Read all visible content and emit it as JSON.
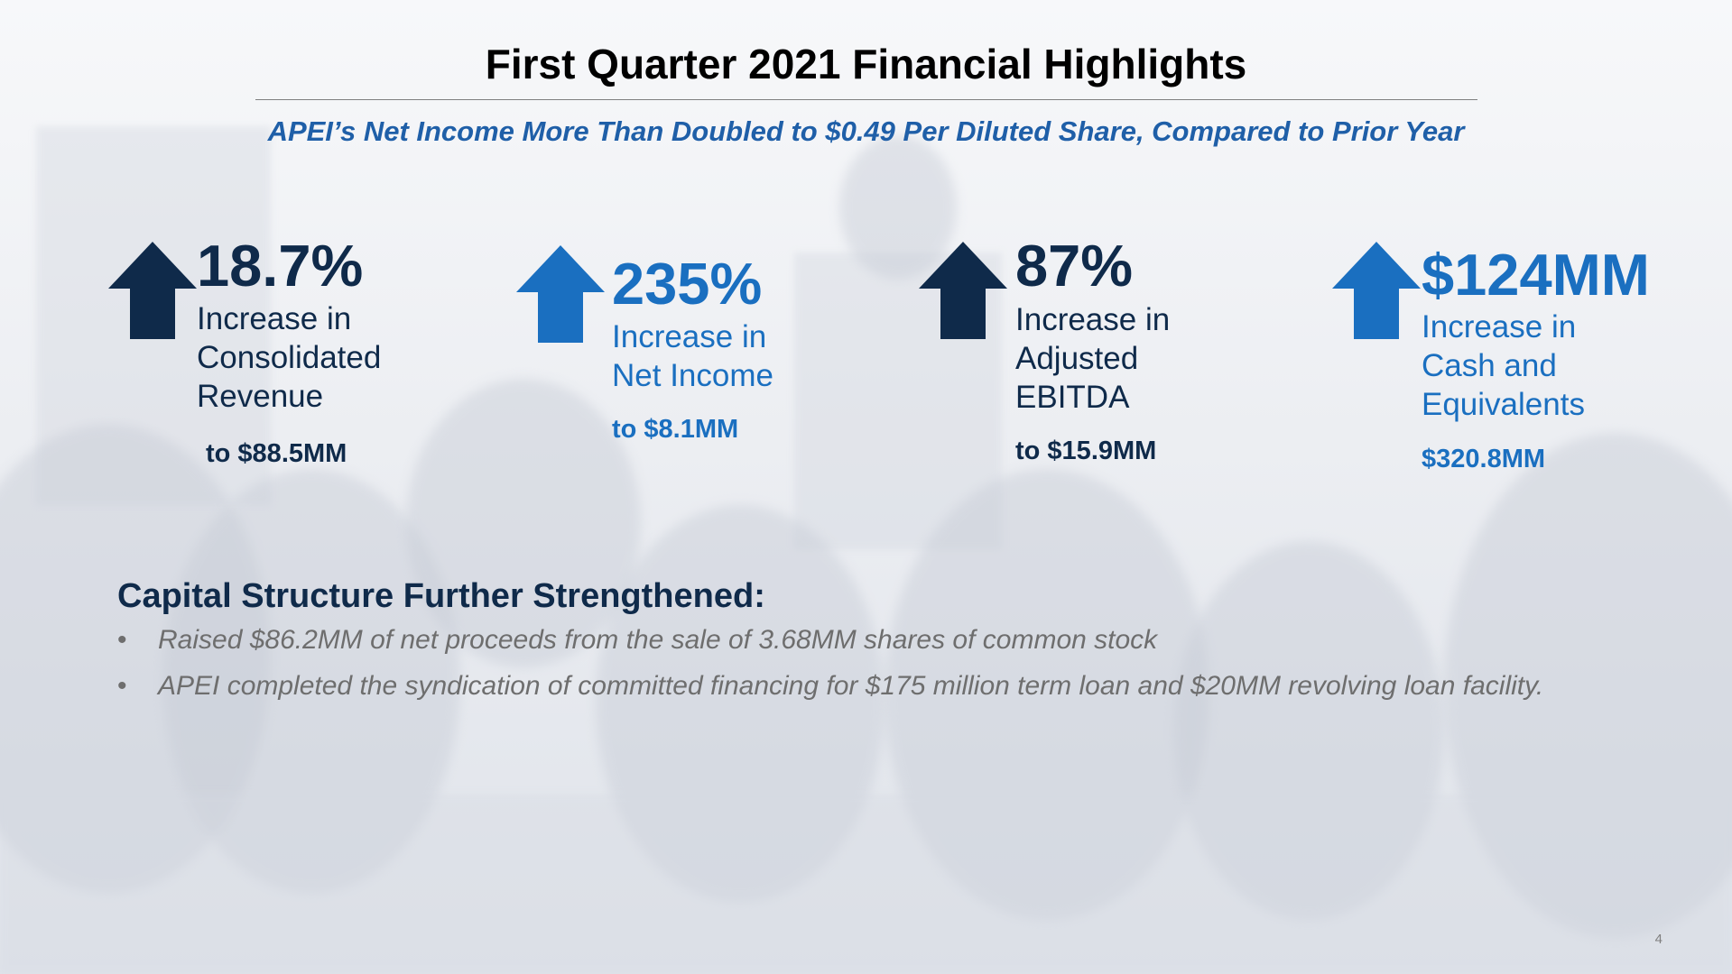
{
  "slide": {
    "title": "First Quarter 2021 Financial Highlights",
    "subtitle": "APEI’s Net Income More Than Doubled to $0.49 Per Diluted Share, Compared to Prior Year",
    "page_number": "4"
  },
  "metrics": [
    {
      "value": "18.7%",
      "desc1": "Increase in",
      "desc2": "Consolidated",
      "desc3": "Revenue",
      "sub": "to $88.5MM",
      "color": "#0f2a4a",
      "icon": "up-arrow-icon"
    },
    {
      "value": "235%",
      "desc1": "Increase in",
      "desc2": "Net Income",
      "desc3": "",
      "sub": "to $8.1MM",
      "color": "#1a6fc0",
      "icon": "up-arrow-icon"
    },
    {
      "value": "87%",
      "desc1": "Increase in",
      "desc2": "Adjusted",
      "desc3": "EBITDA",
      "sub": "to $15.9MM",
      "color": "#0f2a4a",
      "icon": "up-arrow-icon"
    },
    {
      "value": "$124MM",
      "desc1": "Increase in",
      "desc2": "Cash and",
      "desc3": "Equivalents",
      "sub": "$320.8MM",
      "color": "#1a6fc0",
      "icon": "up-arrow-icon"
    }
  ],
  "capital": {
    "heading": "Capital Structure Further Strengthened:",
    "bullet_char": "•",
    "bullets": [
      "Raised $86.2MM of net proceeds from the sale of 3.68MM shares of common stock",
      "APEI completed the syndication of committed financing for $175 million term loan and $20MM revolving loan facility."
    ]
  }
}
